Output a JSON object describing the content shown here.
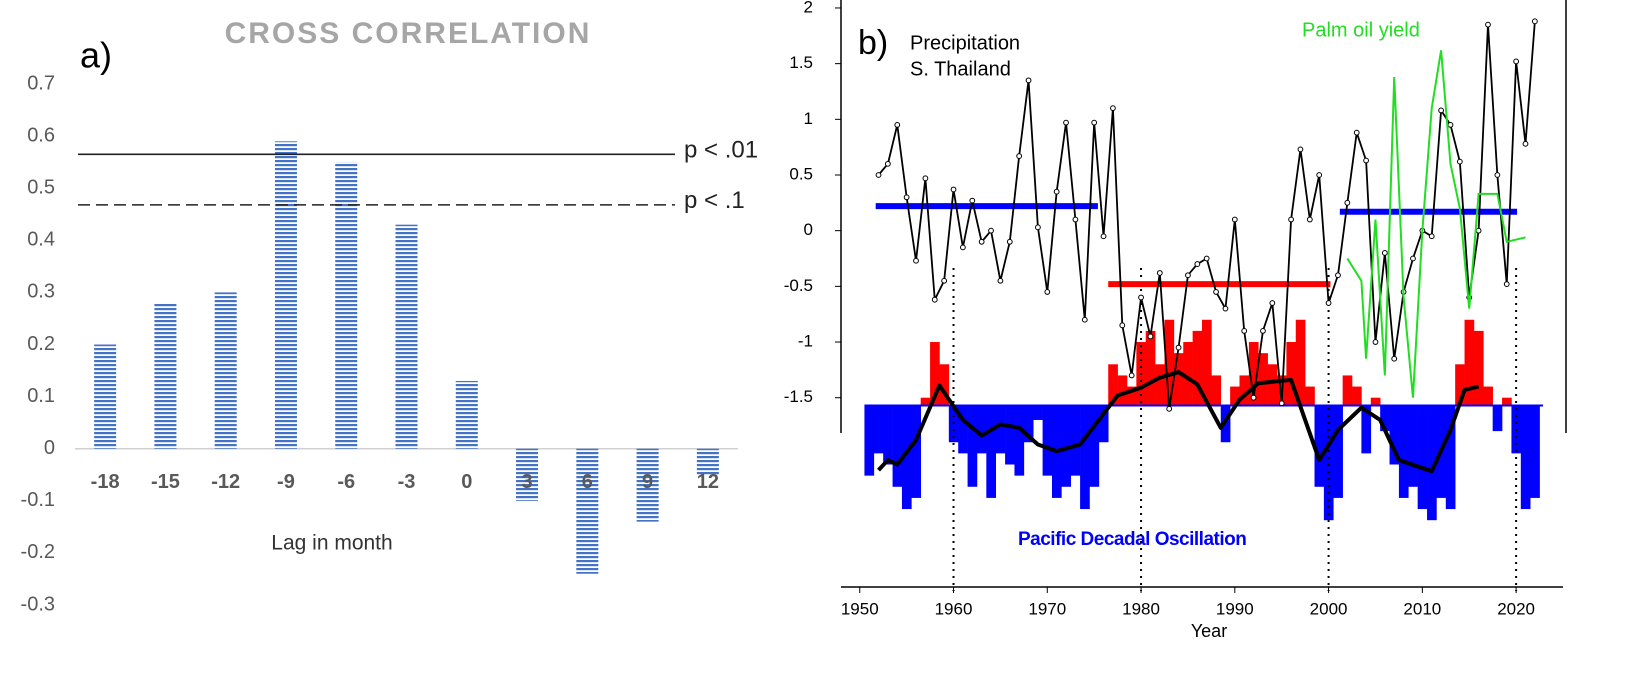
{
  "chart_data": [
    {
      "type": "bar",
      "panel": "a)",
      "title": "CROSS CORRELATION",
      "xlabel": "Lag in month",
      "categories": [
        "-18",
        "-15",
        "-12",
        "-9",
        "-6",
        "-3",
        "0",
        "3",
        "6",
        "9",
        "12"
      ],
      "values": [
        0.2,
        0.28,
        0.3,
        0.59,
        0.55,
        0.43,
        0.13,
        -0.1,
        -0.24,
        -0.14,
        -0.05
      ],
      "color": "#4472c4",
      "ylim": [
        -0.3,
        0.7
      ],
      "yticks": [
        -0.3,
        -0.2,
        -0.1,
        0,
        0.1,
        0.2,
        0.3,
        0.4,
        0.5,
        0.6,
        0.7
      ],
      "reference_lines": [
        {
          "value": 0.565,
          "label": "p < .01",
          "style": "solid"
        },
        {
          "value": 0.468,
          "label": "p < .1",
          "style": "dashed"
        }
      ]
    },
    {
      "type": "line",
      "panel": "b)",
      "xlabel": "Year",
      "xlim": [
        1948,
        2025
      ],
      "xticks": [
        1950,
        1960,
        1970,
        1980,
        1990,
        2000,
        2010,
        2020
      ],
      "ylim": [
        -3.2,
        2.05
      ],
      "yticks": [
        2,
        1.5,
        1,
        0.5,
        0,
        -0.5,
        -1,
        -1.5
      ],
      "vlines": [
        1960,
        1980,
        2000,
        2020
      ],
      "series": [
        {
          "name": [
            "Precipitation",
            "S. Thailand"
          ],
          "color": "#000000",
          "x": [
            1952,
            1953,
            1954,
            1955,
            1956,
            1957,
            1958,
            1959,
            1960,
            1961,
            1962,
            1963,
            1964,
            1965,
            1966,
            1967,
            1968,
            1969,
            1970,
            1971,
            1972,
            1973,
            1974,
            1975,
            1976,
            1977,
            1978,
            1979,
            1980,
            1981,
            1982,
            1983,
            1984,
            1985,
            1986,
            1987,
            1988,
            1989,
            1990,
            1991,
            1992,
            1993,
            1994,
            1995,
            1996,
            1997,
            1998,
            1999,
            2000,
            2001,
            2002,
            2003,
            2004,
            2005,
            2006,
            2007,
            2008,
            2009,
            2010,
            2011,
            2012,
            2013,
            2014,
            2015,
            2016,
            2017,
            2018,
            2019,
            2020,
            2021,
            2022
          ],
          "values": [
            0.5,
            0.6,
            0.95,
            0.3,
            -0.27,
            0.47,
            -0.62,
            -0.45,
            0.37,
            -0.15,
            0.27,
            -0.1,
            0.0,
            -0.45,
            -0.1,
            0.67,
            1.35,
            0.03,
            -0.55,
            0.35,
            0.97,
            0.1,
            -0.8,
            0.97,
            -0.05,
            1.1,
            -0.85,
            -1.3,
            -0.6,
            -0.95,
            -0.38,
            -1.6,
            -1.05,
            -0.4,
            -0.3,
            -0.25,
            -0.55,
            -0.7,
            0.1,
            -0.9,
            -1.5,
            -0.9,
            -0.65,
            -1.55,
            0.1,
            0.73,
            0.1,
            0.5,
            -0.65,
            -0.4,
            0.25,
            0.88,
            0.63,
            -1.0,
            -0.2,
            -1.15,
            -0.55,
            -0.25,
            0.0,
            -0.05,
            1.08,
            0.95,
            0.62,
            -0.6,
            0.0,
            1.85,
            0.5,
            -0.48,
            1.52,
            0.78,
            1.88
          ]
        },
        {
          "name": "Palm oil yield",
          "color": "#22dd22",
          "x": [
            2002,
            2003.5,
            2004,
            2005,
            2006,
            2007,
            2008,
            2009,
            2010,
            2011,
            2012,
            2013,
            2014,
            2015,
            2016,
            2018,
            2019,
            2021
          ],
          "values": [
            -0.25,
            -0.45,
            -1.15,
            0.1,
            -1.3,
            1.38,
            -0.6,
            -1.5,
            0.0,
            1.1,
            1.62,
            0.6,
            0.2,
            -0.7,
            0.33,
            0.33,
            -0.1,
            -0.06
          ]
        }
      ],
      "periods": [
        {
          "start": 1951.7,
          "end": 1975.4,
          "value": 0.22,
          "color": "#0000ff"
        },
        {
          "start": 1976.5,
          "end": 2000.2,
          "value": -0.48,
          "color": "#ff0000"
        },
        {
          "start": 2001.2,
          "end": 2020.1,
          "value": 0.17,
          "color": "#0000ff"
        }
      ],
      "pdo": {
        "name": "Pacific Decadal Oscillation",
        "baseline": -1.57,
        "pos_color": "#ff0000",
        "neg_color": "#0000ff",
        "x": [
          1951,
          1952,
          1953,
          1954,
          1955,
          1956,
          1957,
          1958,
          1959,
          1960,
          1961,
          1962,
          1963,
          1964,
          1965,
          1966,
          1967,
          1968,
          1969,
          1970,
          1971,
          1972,
          1973,
          1974,
          1975,
          1976,
          1977,
          1978,
          1979,
          1980,
          1981,
          1982,
          1983,
          1984,
          1985,
          1986,
          1987,
          1988,
          1989,
          1990,
          1991,
          1992,
          1993,
          1994,
          1995,
          1996,
          1997,
          1998,
          1999,
          2000,
          2001,
          2002,
          2003,
          2004,
          2005,
          2006,
          2007,
          2008,
          2009,
          2010,
          2011,
          2012,
          2013,
          2014,
          2015,
          2016,
          2017,
          2018,
          2019,
          2020,
          2021,
          2022
        ],
        "values": [
          -2.2,
          -2.0,
          -2.1,
          -2.3,
          -2.5,
          -2.4,
          -1.5,
          -1.0,
          -1.2,
          -1.9,
          -2.0,
          -2.3,
          -2.0,
          -2.4,
          -2.0,
          -2.1,
          -2.2,
          -1.9,
          -1.7,
          -2.2,
          -2.4,
          -2.3,
          -2.2,
          -2.5,
          -2.3,
          -1.9,
          -1.2,
          -1.3,
          -1.4,
          -1.0,
          -0.9,
          -1.2,
          -0.8,
          -1.1,
          -1.0,
          -0.9,
          -0.8,
          -1.3,
          -1.9,
          -1.4,
          -1.3,
          -1.0,
          -1.1,
          -1.2,
          -1.3,
          -1.0,
          -0.8,
          -1.4,
          -2.3,
          -2.6,
          -2.4,
          -1.3,
          -1.4,
          -2.0,
          -1.5,
          -1.8,
          -2.1,
          -2.4,
          -2.3,
          -2.5,
          -2.6,
          -2.4,
          -2.5,
          -1.2,
          -0.8,
          -0.9,
          -1.4,
          -1.8,
          -1.5,
          -2.0,
          -2.5,
          -2.4
        ],
        "smooth_x": [
          1952,
          1953,
          1954,
          1956,
          1958.5,
          1961,
          1963,
          1965,
          1967,
          1969,
          1971,
          1973.5,
          1975.5,
          1977.5,
          1980,
          1982,
          1984,
          1986,
          1988.5,
          1990.5,
          1992.5,
          1996,
          1999,
          2001,
          2003.5,
          2005.5,
          2007.5,
          2011,
          2013,
          2014.5,
          2016
        ],
        "smooth_values": [
          -2.15,
          -2.06,
          -2.1,
          -1.88,
          -1.39,
          -1.7,
          -1.84,
          -1.74,
          -1.77,
          -1.92,
          -1.98,
          -1.92,
          -1.7,
          -1.48,
          -1.41,
          -1.32,
          -1.27,
          -1.38,
          -1.77,
          -1.52,
          -1.37,
          -1.34,
          -2.06,
          -1.79,
          -1.59,
          -1.7,
          -2.06,
          -2.16,
          -1.79,
          -1.43,
          -1.4
        ],
        "smooth_color": "#000000"
      }
    }
  ]
}
